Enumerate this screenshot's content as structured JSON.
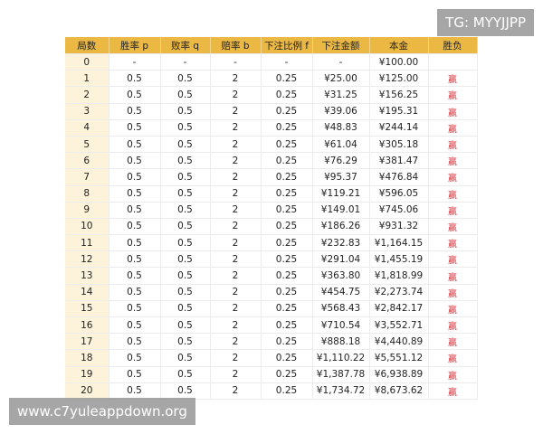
{
  "table": {
    "header": [
      "局数",
      "胜率 p",
      "败率 q",
      "赔率 b",
      "下注比例 f",
      "下注金额",
      "本金",
      "胜负"
    ],
    "rows": [
      [
        "0",
        "-",
        "-",
        "-",
        "-",
        "-",
        "¥100.00"
      ],
      [
        "1",
        "0.5",
        "0.5",
        "2",
        "0.25",
        "¥25.00",
        "¥125.00",
        "赢"
      ],
      [
        "2",
        "0.5",
        "0.5",
        "2",
        "0.25",
        "¥31.25",
        "¥156.25",
        "赢"
      ],
      [
        "3",
        "0.5",
        "0.5",
        "2",
        "0.25",
        "¥39.06",
        "¥195.31",
        "赢"
      ],
      [
        "4",
        "0.5",
        "0.5",
        "2",
        "0.25",
        "¥48.83",
        "¥244.14",
        "赢"
      ],
      [
        "5",
        "0.5",
        "0.5",
        "2",
        "0.25",
        "¥61.04",
        "¥305.18",
        "赢"
      ],
      [
        "6",
        "0.5",
        "0.5",
        "2",
        "0.25",
        "¥76.29",
        "¥381.47",
        "赢"
      ],
      [
        "7",
        "0.5",
        "0.5",
        "2",
        "0.25",
        "¥95.37",
        "¥476.84",
        "赢"
      ],
      [
        "8",
        "0.5",
        "0.5",
        "2",
        "0.25",
        "¥119.21",
        "¥596.05",
        "赢"
      ],
      [
        "9",
        "0.5",
        "0.5",
        "2",
        "0.25",
        "¥149.01",
        "¥745.06",
        "赢"
      ],
      [
        "10",
        "0.5",
        "0.5",
        "2",
        "0.25",
        "¥186.26",
        "¥931.32",
        "赢"
      ],
      [
        "11",
        "0.5",
        "0.5",
        "2",
        "0.25",
        "¥232.83",
        "¥1,164.15",
        "赢"
      ],
      [
        "12",
        "0.5",
        "0.5",
        "2",
        "0.25",
        "¥291.04",
        "¥1,455.19",
        "赢"
      ],
      [
        "13",
        "0.5",
        "0.5",
        "2",
        "0.25",
        "¥363.80",
        "¥1,818.99",
        "赢"
      ],
      [
        "14",
        "0.5",
        "0.5",
        "2",
        "0.25",
        "¥454.75",
        "¥2,273.74",
        "赢"
      ],
      [
        "15",
        "0.5",
        "0.5",
        "2",
        "0.25",
        "¥568.43",
        "¥2,842.17",
        "赢"
      ],
      [
        "16",
        "0.5",
        "0.5",
        "2",
        "0.25",
        "¥710.54",
        "¥3,552.71",
        "赢"
      ],
      [
        "17",
        "0.5",
        "0.5",
        "2",
        "0.25",
        "¥888.18",
        "¥4,440.89",
        "赢"
      ],
      [
        "18",
        "0.5",
        "0.5",
        "2",
        "0.25",
        "¥1,110.22",
        "¥5,551.12",
        "赢"
      ],
      [
        "19",
        "0.5",
        "0.5",
        "2",
        "0.25",
        "¥1,387.78",
        "¥6,938.89",
        "赢"
      ],
      [
        "20",
        "0.5",
        "0.5",
        "2",
        "0.25",
        "¥1,734.72",
        "¥8,673.62",
        "赢"
      ]
    ]
  },
  "watermarks": {
    "top": "TG: MYYJJPP",
    "bottom": "www.c7yuleappdown.org"
  }
}
